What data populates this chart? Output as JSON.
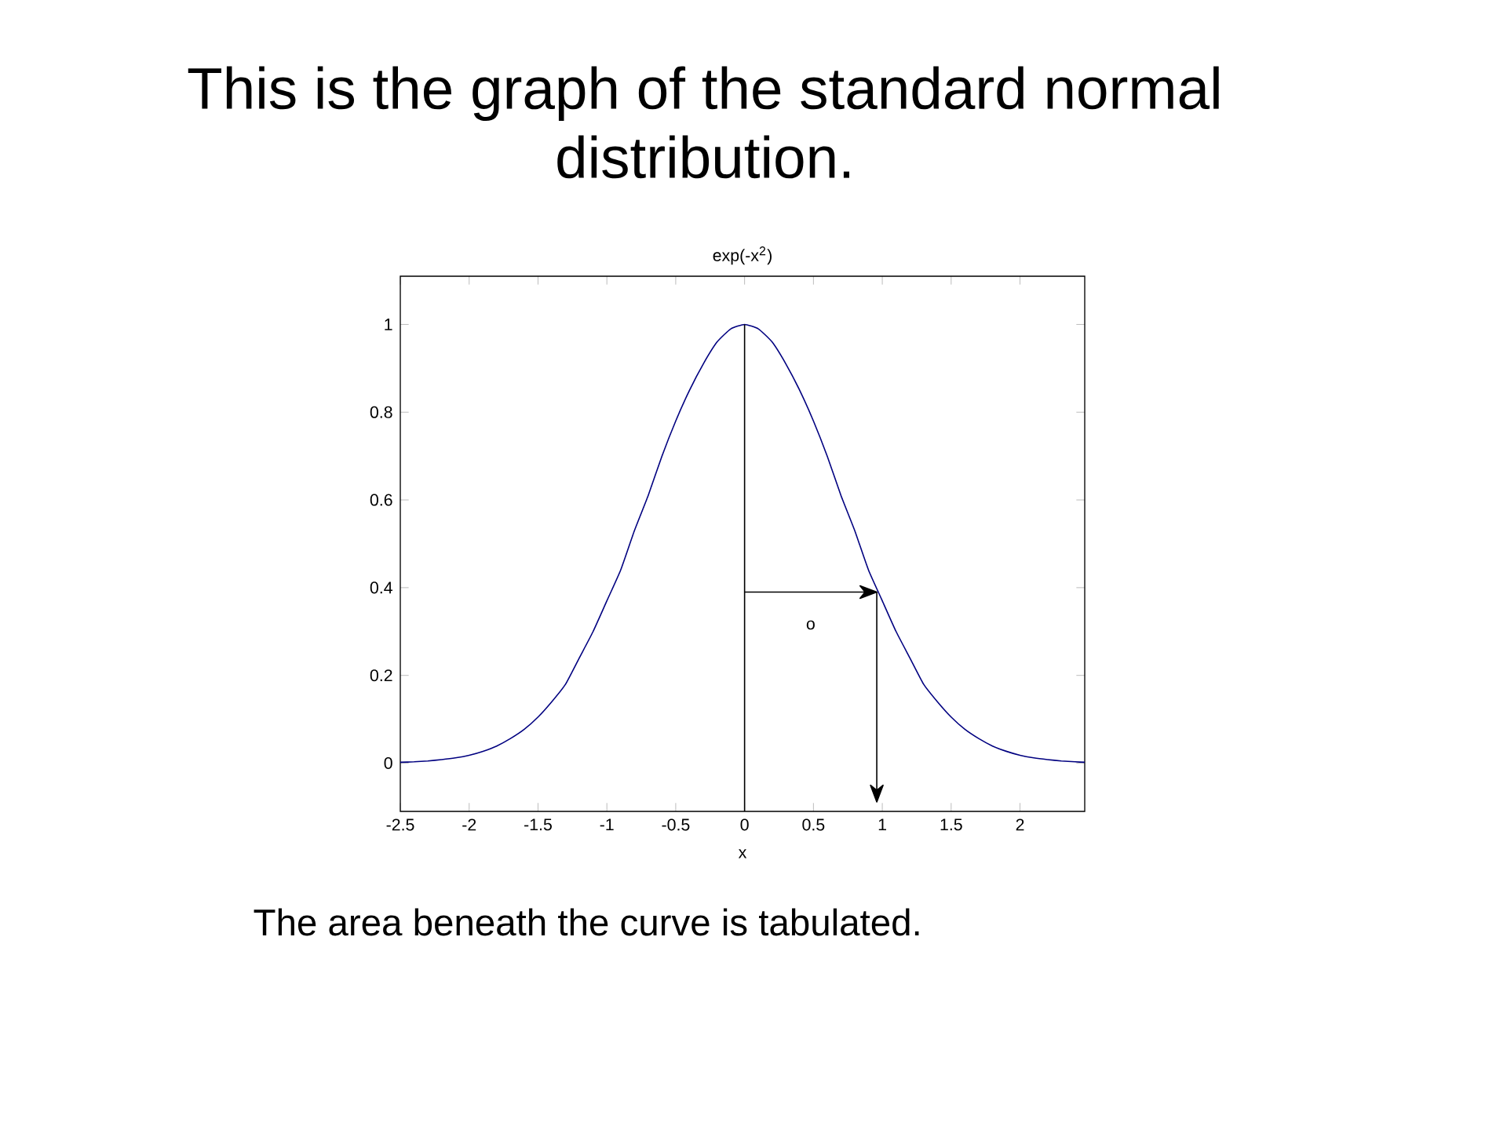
{
  "chart_data": {
    "type": "line",
    "title": "This is the graph of the standard normal distribution.",
    "subtitle": "exp(-x$^{2}$)",
    "xlabel": "x",
    "annotations": [
      "The area beneath the curve is tabulated."
    ],
    "ref_lines": [
      {
        "axis": "y",
        "value": 0.39,
        "label": "o",
        "color": "#000000"
      },
      {
        "axis": "x",
        "value": 0.96,
        "color": "#000000"
      }
    ],
    "series": [
      {
        "color": "#000080",
        "x": [
          -2.5,
          -2.4,
          -2.3,
          -2.2,
          -2.1,
          -2.0,
          -1.9,
          -1.8,
          -1.7,
          -1.6,
          -1.5,
          -1.4,
          -1.3,
          -1.2,
          -1.1,
          -1.0,
          -0.9,
          -0.8,
          -0.7,
          -0.6,
          -0.5,
          -0.4,
          -0.3,
          -0.2,
          -0.1,
          0,
          0.1,
          0.2,
          0.3,
          0.4,
          0.5,
          0.6,
          0.7,
          0.8,
          0.9,
          1.0,
          1.1,
          1.2,
          1.3,
          1.4,
          1.5,
          1.6,
          1.7,
          1.8,
          1.9,
          2.0,
          2.1,
          2.2,
          2.3,
          2.4,
          2.47
        ],
        "values": [
          0.002,
          0.003,
          0.005,
          0.008,
          0.012,
          0.018,
          0.027,
          0.039,
          0.056,
          0.077,
          0.105,
          0.14,
          0.18,
          0.24,
          0.3,
          0.37,
          0.44,
          0.53,
          0.61,
          0.7,
          0.78,
          0.85,
          0.91,
          0.96,
          0.99,
          1.0,
          0.99,
          0.96,
          0.91,
          0.85,
          0.78,
          0.7,
          0.61,
          0.53,
          0.44,
          0.37,
          0.3,
          0.24,
          0.18,
          0.14,
          0.105,
          0.077,
          0.056,
          0.039,
          0.027,
          0.018,
          0.012,
          0.008,
          0.005,
          0.003,
          0.002
        ]
      },
      {
        "color": "#000000",
        "x": [
          0,
          0
        ],
        "values": [
          -0.11,
          1.0
        ]
      }
    ],
    "xlim": [
      -2.5,
      2.47
    ],
    "ylim": [
      -0.11,
      1.11
    ],
    "xticks": [
      -2.5,
      -2,
      -1.5,
      -1,
      -0.5,
      0,
      0.5,
      1,
      1.5,
      2
    ],
    "yticks": [
      0,
      0.2,
      0.4,
      0.6,
      0.8,
      1
    ]
  }
}
